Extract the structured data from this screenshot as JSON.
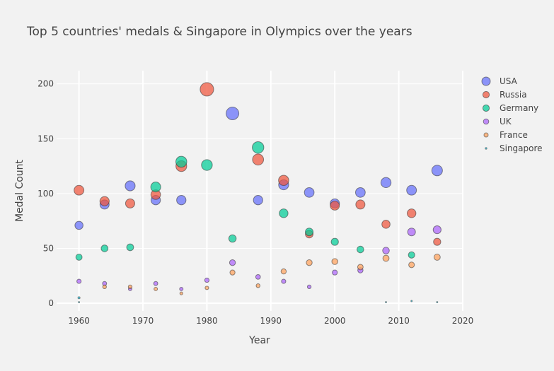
{
  "chart_data": {
    "type": "scatter",
    "title": "Top 5 countries' medals & Singapore in Olympics over the years",
    "xlabel": "Year",
    "ylabel": "Medal Count",
    "xlim": [
      1956.5,
      2020
    ],
    "ylim": [
      -7,
      212
    ],
    "x_ticks": [
      1960,
      1970,
      1980,
      1990,
      2000,
      2010,
      2020
    ],
    "y_ticks": [
      0,
      50,
      100,
      150,
      200
    ],
    "grid": true,
    "legend_position": "top-right",
    "series": [
      {
        "name": "USA",
        "color": "#636efa",
        "points": [
          {
            "x": 1960,
            "y": 71
          },
          {
            "x": 1964,
            "y": 90
          },
          {
            "x": 1968,
            "y": 107
          },
          {
            "x": 1972,
            "y": 94
          },
          {
            "x": 1976,
            "y": 94
          },
          {
            "x": 1984,
            "y": 173
          },
          {
            "x": 1988,
            "y": 94
          },
          {
            "x": 1992,
            "y": 108
          },
          {
            "x": 1996,
            "y": 101
          },
          {
            "x": 2000,
            "y": 91
          },
          {
            "x": 2004,
            "y": 101
          },
          {
            "x": 2008,
            "y": 110
          },
          {
            "x": 2012,
            "y": 103
          },
          {
            "x": 2016,
            "y": 121
          }
        ]
      },
      {
        "name": "Russia",
        "color": "#ef553b",
        "points": [
          {
            "x": 1960,
            "y": 103
          },
          {
            "x": 1964,
            "y": 93
          },
          {
            "x": 1968,
            "y": 91
          },
          {
            "x": 1972,
            "y": 99
          },
          {
            "x": 1976,
            "y": 125
          },
          {
            "x": 1980,
            "y": 195
          },
          {
            "x": 1988,
            "y": 131
          },
          {
            "x": 1992,
            "y": 112
          },
          {
            "x": 1996,
            "y": 63
          },
          {
            "x": 2000,
            "y": 89
          },
          {
            "x": 2004,
            "y": 90
          },
          {
            "x": 2008,
            "y": 72
          },
          {
            "x": 2012,
            "y": 82
          },
          {
            "x": 2016,
            "y": 56
          }
        ]
      },
      {
        "name": "Germany",
        "color": "#00cc96",
        "points": [
          {
            "x": 1960,
            "y": 42
          },
          {
            "x": 1964,
            "y": 50
          },
          {
            "x": 1968,
            "y": 51
          },
          {
            "x": 1972,
            "y": 106
          },
          {
            "x": 1976,
            "y": 129
          },
          {
            "x": 1980,
            "y": 126
          },
          {
            "x": 1984,
            "y": 59
          },
          {
            "x": 1988,
            "y": 142
          },
          {
            "x": 1992,
            "y": 82
          },
          {
            "x": 1996,
            "y": 65
          },
          {
            "x": 2000,
            "y": 56
          },
          {
            "x": 2004,
            "y": 49
          },
          {
            "x": 2012,
            "y": 44
          }
        ]
      },
      {
        "name": "UK",
        "color": "#ab63fa",
        "points": [
          {
            "x": 1960,
            "y": 20
          },
          {
            "x": 1964,
            "y": 18
          },
          {
            "x": 1968,
            "y": 13
          },
          {
            "x": 1972,
            "y": 18
          },
          {
            "x": 1976,
            "y": 13
          },
          {
            "x": 1980,
            "y": 21
          },
          {
            "x": 1984,
            "y": 37
          },
          {
            "x": 1988,
            "y": 24
          },
          {
            "x": 1992,
            "y": 20
          },
          {
            "x": 1996,
            "y": 15
          },
          {
            "x": 2000,
            "y": 28
          },
          {
            "x": 2004,
            "y": 30
          },
          {
            "x": 2008,
            "y": 48
          },
          {
            "x": 2012,
            "y": 65
          },
          {
            "x": 2016,
            "y": 67
          }
        ]
      },
      {
        "name": "France",
        "color": "#ffa15a",
        "points": [
          {
            "x": 1964,
            "y": 15
          },
          {
            "x": 1968,
            "y": 15
          },
          {
            "x": 1972,
            "y": 13
          },
          {
            "x": 1976,
            "y": 9
          },
          {
            "x": 1980,
            "y": 14
          },
          {
            "x": 1984,
            "y": 28
          },
          {
            "x": 1988,
            "y": 16
          },
          {
            "x": 1992,
            "y": 29
          },
          {
            "x": 1996,
            "y": 37
          },
          {
            "x": 2000,
            "y": 38
          },
          {
            "x": 2004,
            "y": 33
          },
          {
            "x": 2008,
            "y": 41
          },
          {
            "x": 2012,
            "y": 35
          },
          {
            "x": 2016,
            "y": 42
          }
        ]
      },
      {
        "name": "Singapore",
        "color": "#19d3f3",
        "points": [
          {
            "x": 1960,
            "y": 5
          },
          {
            "x": 1960,
            "y": 1
          },
          {
            "x": 2008,
            "y": 1
          },
          {
            "x": 2012,
            "y": 2
          },
          {
            "x": 2016,
            "y": 1
          }
        ]
      }
    ]
  }
}
